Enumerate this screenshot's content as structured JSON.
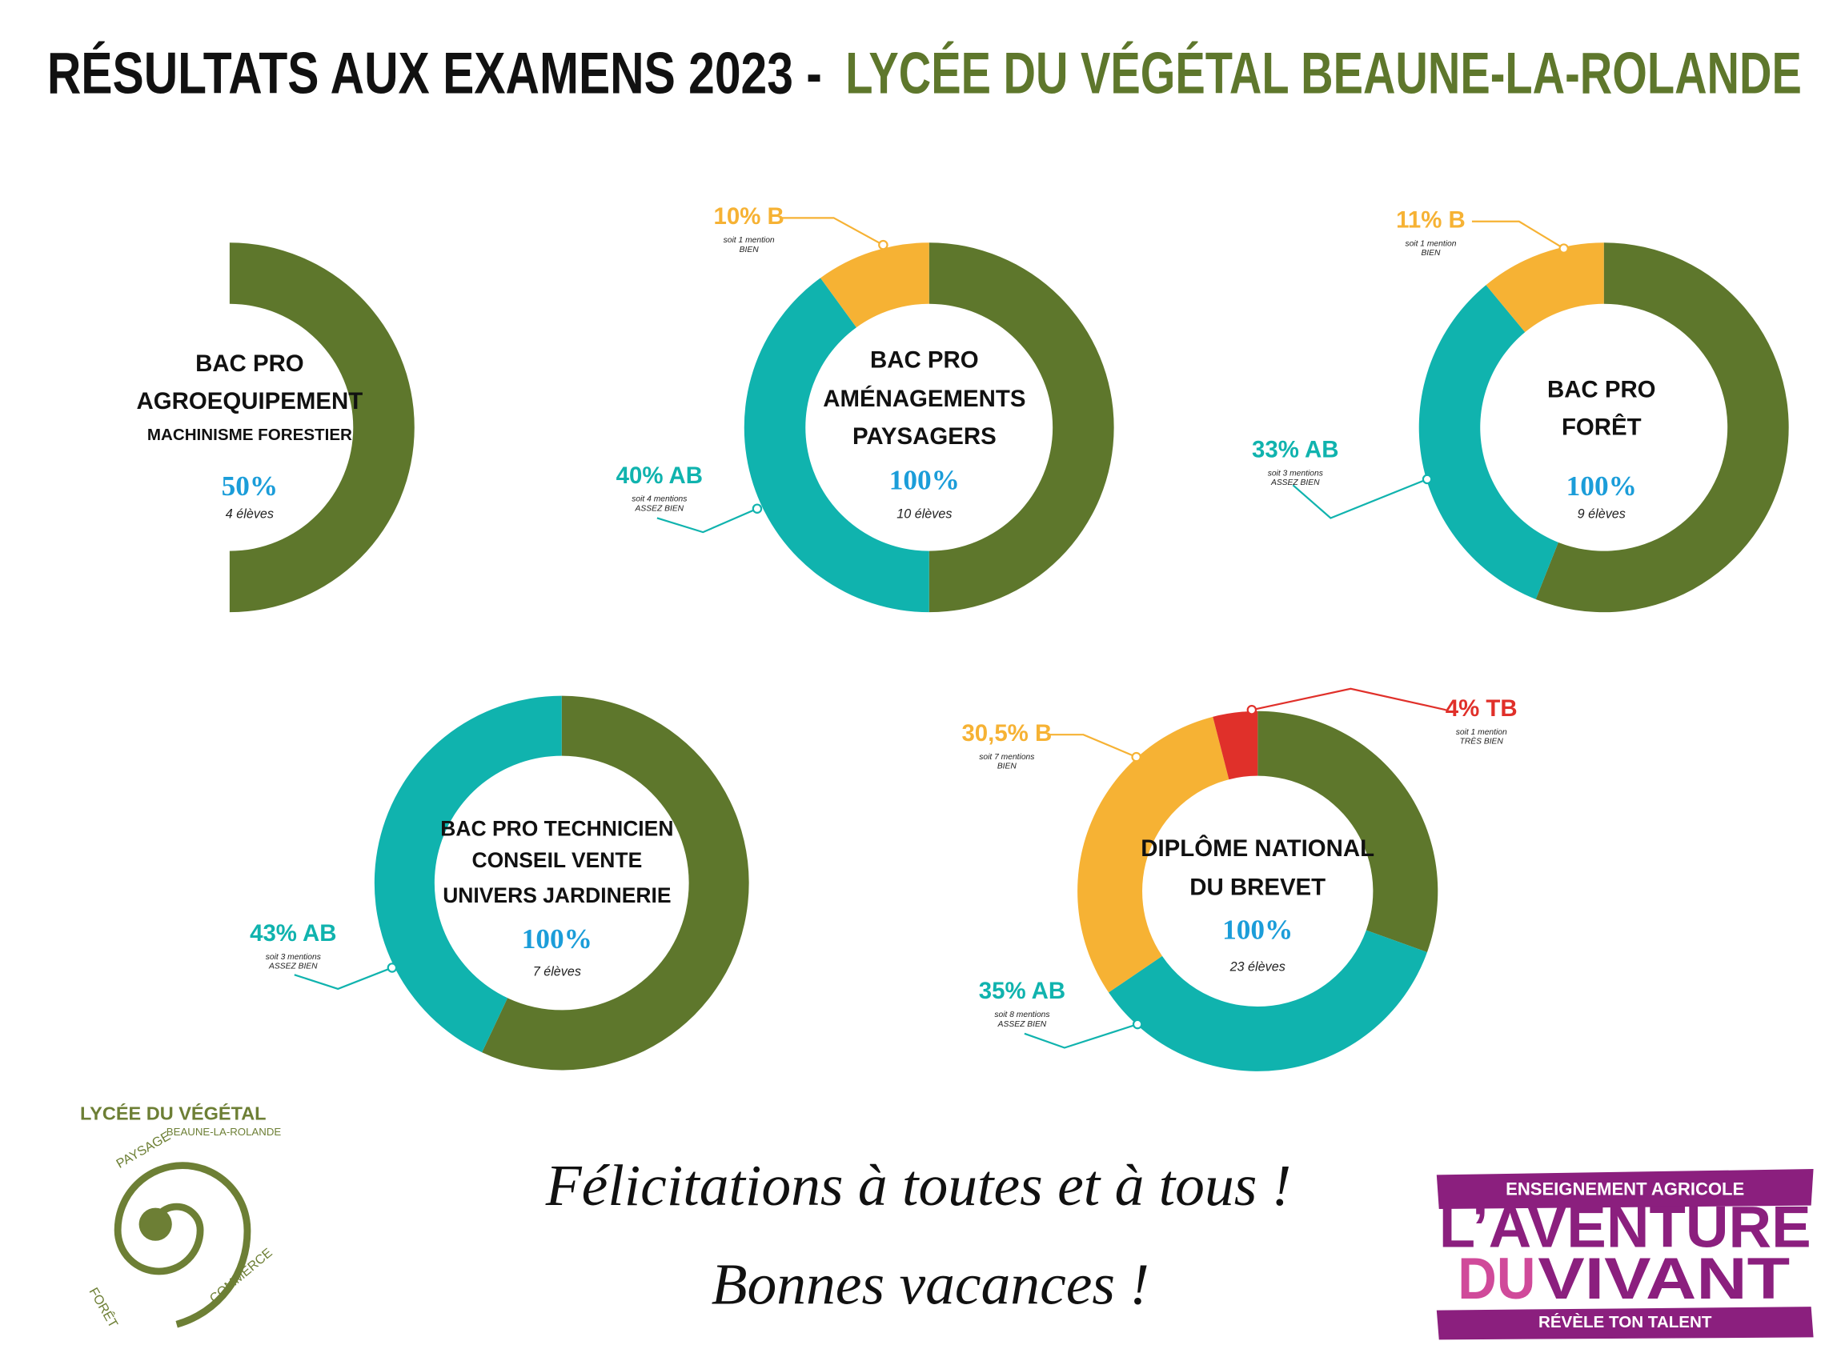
{
  "header": {
    "title_black": "RÉSULTATS AUX EXAMENS 2023 -",
    "title_green": "LYCÉE DU VÉGÉTAL BEAUNE-LA-ROLANDE"
  },
  "chart_data": [
    {
      "type": "donut",
      "title_lines": [
        "BAC PRO",
        "AGROEQUIPEMENT",
        "MACHINISME FORESTIER"
      ],
      "rate": "50%",
      "count": "4 élèves",
      "values": [
        50
      ],
      "colors": [
        "#5e772c"
      ],
      "value_labels": [
        null
      ],
      "notes": [
        null
      ]
    },
    {
      "type": "donut",
      "title_lines": [
        "BAC PRO",
        "AMÉNAGEMENTS",
        "PAYSAGERS"
      ],
      "rate": "100%",
      "count": "10 élèves",
      "values": [
        50,
        40,
        10
      ],
      "colors": [
        "#5e772c",
        "#10b3ae",
        "#f6b234"
      ],
      "value_labels": [
        null,
        "40% AB",
        "10% B"
      ],
      "notes": [
        null,
        [
          "soit 4 mentions",
          "ASSEZ BIEN"
        ],
        [
          "soit 1 mention",
          "BIEN"
        ]
      ]
    },
    {
      "type": "donut",
      "title_lines": [
        "BAC PRO",
        "FORÊT"
      ],
      "rate": "100%",
      "count": "9 élèves",
      "values": [
        56,
        33,
        11
      ],
      "colors": [
        "#5e772c",
        "#10b3ae",
        "#f6b234"
      ],
      "value_labels": [
        null,
        "33% AB",
        "11% B"
      ],
      "notes": [
        null,
        [
          "soit 3 mentions",
          "ASSEZ BIEN"
        ],
        [
          "soit 1 mention",
          "BIEN"
        ]
      ]
    },
    {
      "type": "donut",
      "title_lines": [
        "BAC PRO TECHNICIEN",
        "CONSEIL VENTE",
        "UNIVERS JARDINERIE"
      ],
      "rate": "100%",
      "count": "7 élèves",
      "values": [
        57,
        43
      ],
      "colors": [
        "#5e772c",
        "#10b3ae"
      ],
      "value_labels": [
        null,
        "43% AB"
      ],
      "notes": [
        null,
        [
          "soit 3 mentions",
          "ASSEZ BIEN"
        ]
      ]
    },
    {
      "type": "donut",
      "title_lines": [
        "DIPLÔME NATIONAL",
        "DU BREVET"
      ],
      "rate": "100%",
      "count": "23 élèves",
      "values": [
        30.5,
        35,
        30.5,
        4
      ],
      "colors": [
        "#5e772c",
        "#10b3ae",
        "#f6b234",
        "#e0302a"
      ],
      "value_labels": [
        null,
        "35% AB",
        "30,5% B",
        "4% TB"
      ],
      "notes": [
        null,
        [
          "soit 8 mentions",
          "ASSEZ BIEN"
        ],
        [
          "soit 7 mentions",
          "BIEN"
        ],
        [
          "soit 1 mention",
          "TRÈS BIEN"
        ]
      ]
    }
  ],
  "footer": {
    "messages": [
      "Félicitations à toutes et à tous !",
      "Bonnes vacances !"
    ],
    "school_logo": {
      "name": "LYCÉE DU VÉGÉTAL",
      "town": "BEAUNE-LA-ROLANDE",
      "areas": [
        "PAYSAGE",
        "FORÊT",
        "COMMERCE"
      ]
    },
    "brand_logo": {
      "top": "ENSEIGNEMENT AGRICOLE",
      "line1": "L’AVENTURE",
      "line2a": "DU",
      "line2b": "VIVANT",
      "bottom": "RÉVÈLE TON TALENT"
    }
  }
}
